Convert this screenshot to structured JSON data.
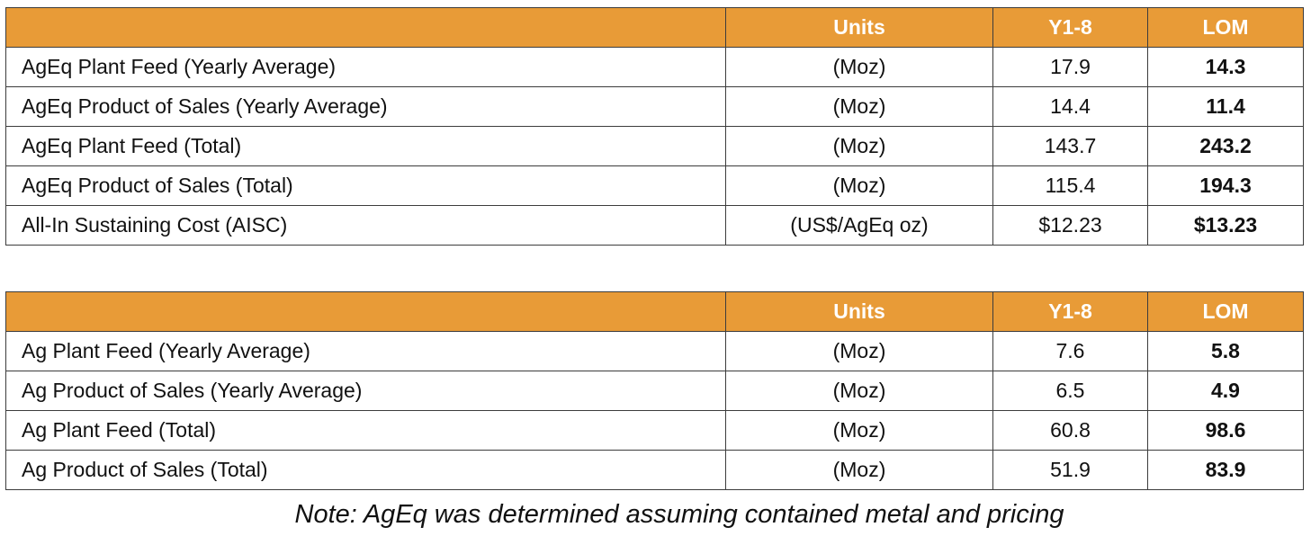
{
  "tables": [
    {
      "header": {
        "label": "",
        "units": "Units",
        "y1_8": "Y1-8",
        "lom": "LOM"
      },
      "rows": [
        {
          "label": "AgEq Plant Feed (Yearly Average)",
          "units": "(Moz)",
          "y1_8": "17.9",
          "lom": "14.3"
        },
        {
          "label": "AgEq Product of Sales (Yearly Average)",
          "units": "(Moz)",
          "y1_8": "14.4",
          "lom": "11.4"
        },
        {
          "label": "AgEq Plant Feed (Total)",
          "units": "(Moz)",
          "y1_8": "143.7",
          "lom": "243.2"
        },
        {
          "label": "AgEq Product of Sales (Total)",
          "units": "(Moz)",
          "y1_8": "115.4",
          "lom": "194.3"
        },
        {
          "label": "All-In Sustaining Cost (AISC)",
          "units": "(US$/AgEq oz)",
          "y1_8": "$12.23",
          "lom": "$13.23"
        }
      ]
    },
    {
      "header": {
        "label": "",
        "units": "Units",
        "y1_8": "Y1-8",
        "lom": "LOM"
      },
      "rows": [
        {
          "label": "Ag Plant Feed (Yearly Average)",
          "units": "(Moz)",
          "y1_8": "7.6",
          "lom": "5.8"
        },
        {
          "label": "Ag Product of Sales (Yearly Average)",
          "units": "(Moz)",
          "y1_8": "6.5",
          "lom": "4.9"
        },
        {
          "label": "Ag Plant Feed (Total)",
          "units": "(Moz)",
          "y1_8": "60.8",
          "lom": "98.6"
        },
        {
          "label": "Ag Product of Sales (Total)",
          "units": "(Moz)",
          "y1_8": "51.9",
          "lom": "83.9"
        }
      ]
    }
  ],
  "note": "Note: AgEq was determined assuming contained metal and pricing",
  "colors": {
    "header_bg": "#E89B37",
    "header_text": "#ffffff",
    "border": "#3c3c3c"
  }
}
